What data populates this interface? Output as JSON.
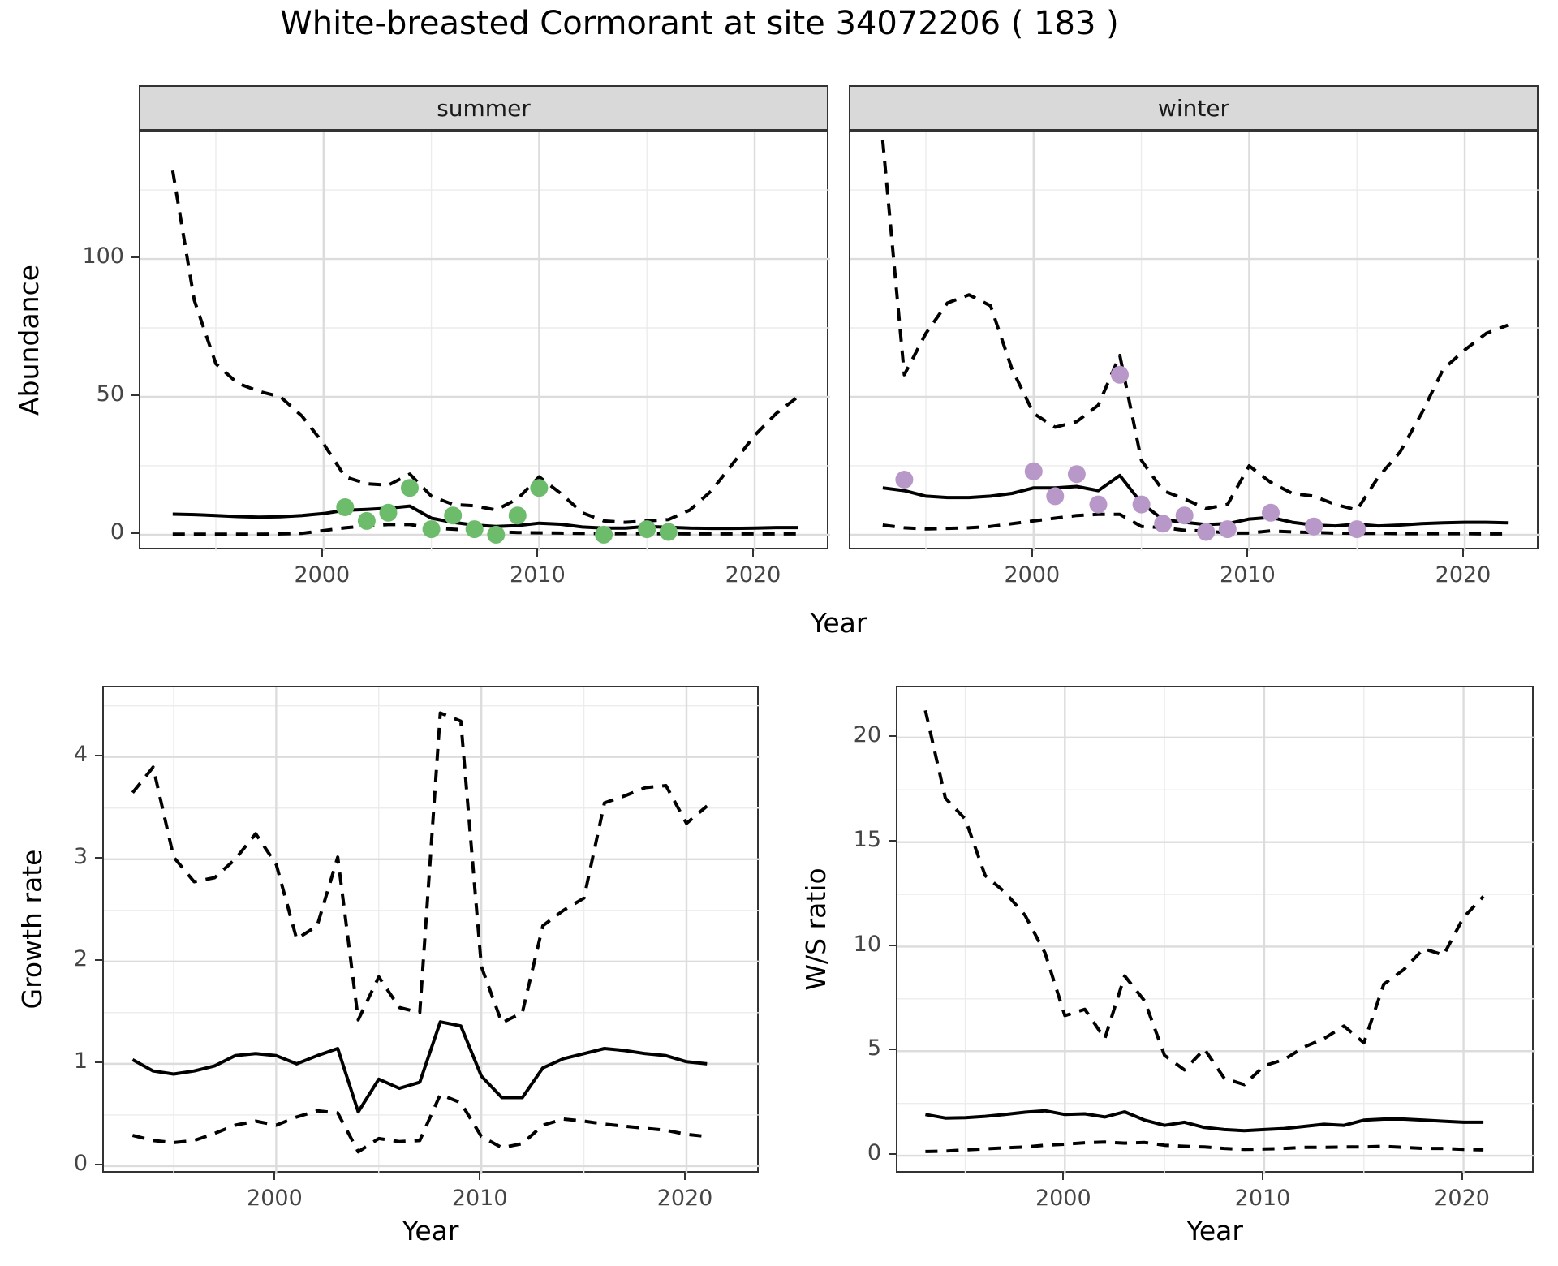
{
  "title": "White-breasted Cormorant at site 34072206 ( 183 )",
  "top_axis": {
    "ylabel": "Abundance",
    "xlabel": "Year"
  },
  "colors": {
    "summer_point": "#6CBC6C",
    "winter_point": "#B898C8",
    "line": "#000000",
    "grid_major": "#DCDCDC",
    "grid_minor": "#ECECEC",
    "strip_bg": "#D9D9D9",
    "panel_border": "#333333",
    "tick_text": "#454545"
  },
  "chart_data": [
    {
      "id": "abundance_summer",
      "type": "line",
      "facet_label": "summer",
      "ylabel": "Abundance",
      "xlabel": "Year",
      "xlim": [
        1991.5,
        2023.5
      ],
      "ylim": [
        -5.9,
        145.9
      ],
      "x_major": [
        2000,
        2010,
        2020
      ],
      "x_minor": [
        1995,
        2005,
        2015
      ],
      "y_major": [
        0,
        50,
        100
      ],
      "y_minor": [
        25,
        75,
        125
      ],
      "x_tick_labels": [
        "2000",
        "2010",
        "2020"
      ],
      "y_tick_labels": [
        "0",
        "50",
        "100"
      ],
      "grid": true,
      "legend": "none",
      "x": [
        1993,
        1994,
        1995,
        1996,
        1997,
        1998,
        1999,
        2000,
        2001,
        2002,
        2003,
        2004,
        2005,
        2006,
        2007,
        2008,
        2009,
        2010,
        2011,
        2012,
        2013,
        2014,
        2015,
        2016,
        2017,
        2018,
        2019,
        2020,
        2021,
        2022
      ],
      "series": [
        {
          "name": "estimate",
          "style": "solid",
          "values": [
            7.5,
            7.3,
            7.0,
            6.6,
            6.4,
            6.5,
            7.0,
            7.7,
            8.9,
            9.2,
            9.6,
            10.4,
            6.0,
            4.5,
            3.5,
            3.0,
            3.3,
            4.2,
            3.8,
            2.8,
            2.4,
            2.4,
            3.0,
            2.7,
            2.4,
            2.3,
            2.3,
            2.4,
            2.6,
            2.6
          ]
        },
        {
          "name": "ci_upper",
          "style": "dashed",
          "values": [
            132,
            85,
            62,
            55,
            52,
            50,
            43,
            33,
            21,
            18.5,
            18,
            22,
            14,
            11,
            10.5,
            9,
            13,
            21,
            15,
            8,
            5,
            4.5,
            5,
            5.5,
            9,
            16,
            26,
            36,
            44,
            50
          ]
        },
        {
          "name": "ci_lower",
          "style": "dashed",
          "values": [
            0.2,
            0.2,
            0.2,
            0.2,
            0.2,
            0.3,
            0.5,
            1.5,
            2.5,
            3.2,
            3.7,
            3.7,
            2.5,
            2.0,
            1.5,
            1.0,
            0.8,
            0.7,
            0.6,
            0.5,
            0.4,
            0.4,
            0.4,
            0.4,
            0.3,
            0.3,
            0.3,
            0.3,
            0.3,
            0.3
          ]
        }
      ],
      "points": {
        "name": "observed_counts",
        "color": "#6CBC6C",
        "x": [
          2001,
          2002,
          2003,
          2004,
          2005,
          2006,
          2007,
          2008,
          2009,
          2010,
          2013,
          2015,
          2016
        ],
        "y": [
          10,
          5,
          8,
          17,
          2,
          7,
          2,
          0,
          7,
          17,
          0,
          2,
          1
        ]
      }
    },
    {
      "id": "abundance_winter",
      "type": "line",
      "facet_label": "winter",
      "ylabel": "Abundance",
      "xlabel": "Year",
      "xlim": [
        1991.5,
        2023.5
      ],
      "ylim": [
        -5.9,
        145.9
      ],
      "x_major": [
        2000,
        2010,
        2020
      ],
      "x_minor": [
        1995,
        2005,
        2015
      ],
      "y_major": [
        0,
        50,
        100
      ],
      "y_minor": [
        25,
        75,
        125
      ],
      "x_tick_labels": [
        "2000",
        "2010",
        "2020"
      ],
      "y_tick_labels": [],
      "grid": true,
      "legend": "none",
      "x": [
        1993,
        1994,
        1995,
        1996,
        1997,
        1998,
        1999,
        2000,
        2001,
        2002,
        2003,
        2004,
        2005,
        2006,
        2007,
        2008,
        2009,
        2010,
        2011,
        2012,
        2013,
        2014,
        2015,
        2016,
        2017,
        2018,
        2019,
        2020,
        2021,
        2022
      ],
      "series": [
        {
          "name": "estimate",
          "style": "solid",
          "values": [
            17,
            16,
            14,
            13.5,
            13.5,
            14,
            15,
            17,
            17,
            17.5,
            16,
            21.5,
            11.5,
            5.5,
            4.5,
            3.7,
            4.0,
            5.7,
            6.3,
            4.5,
            3.5,
            3.2,
            3.8,
            3.2,
            3.5,
            4.0,
            4.3,
            4.5,
            4.5,
            4.3
          ]
        },
        {
          "name": "ci_upper",
          "style": "dashed",
          "values": [
            143,
            58,
            73,
            84,
            87,
            83,
            60,
            44,
            39,
            41,
            47,
            65,
            27,
            16,
            13,
            9.5,
            11,
            25,
            19,
            15,
            14,
            11,
            9,
            21,
            30,
            44,
            60,
            67,
            73,
            76
          ]
        },
        {
          "name": "ci_lower",
          "style": "dashed",
          "values": [
            3.5,
            2.5,
            2.1,
            2.3,
            2.5,
            3.0,
            4.0,
            5.0,
            6.0,
            7.0,
            7.4,
            7.4,
            3.0,
            2.6,
            1.6,
            1.4,
            0.6,
            0.6,
            1.4,
            1.0,
            0.8,
            0.6,
            0.5,
            0.5,
            0.4,
            0.4,
            0.4,
            0.4,
            0.3,
            0.3
          ]
        }
      ],
      "points": {
        "name": "observed_counts",
        "color": "#B898C8",
        "x": [
          1994,
          2000,
          2001,
          2002,
          2003,
          2004,
          2005,
          2006,
          2007,
          2008,
          2009,
          2011,
          2013,
          2015
        ],
        "y": [
          20,
          23,
          14,
          22,
          11,
          58,
          11,
          4,
          7,
          1,
          2,
          8,
          3,
          2
        ]
      }
    },
    {
      "id": "growth_rate",
      "type": "line",
      "facet_label": "",
      "ylabel": "Growth rate",
      "xlabel": "Year",
      "xlim": [
        1991.6,
        2023.6
      ],
      "ylim": [
        -0.08,
        4.68
      ],
      "x_major": [
        2000,
        2010,
        2020
      ],
      "x_minor": [
        1995,
        2005,
        2015
      ],
      "y_major": [
        0,
        1,
        2,
        3,
        4
      ],
      "y_minor": [
        0.5,
        1.5,
        2.5,
        3.5,
        4.5
      ],
      "x_tick_labels": [
        "2000",
        "2010",
        "2020"
      ],
      "y_tick_labels": [
        "0",
        "1",
        "2",
        "3",
        "4"
      ],
      "grid": true,
      "legend": "none",
      "x": [
        1993,
        1994,
        1995,
        1996,
        1997,
        1998,
        1999,
        2000,
        2001,
        2002,
        2003,
        2004,
        2005,
        2006,
        2007,
        2008,
        2009,
        2010,
        2011,
        2012,
        2013,
        2014,
        2015,
        2016,
        2017,
        2018,
        2019,
        2020,
        2021
      ],
      "series": [
        {
          "name": "estimate",
          "style": "solid",
          "values": [
            1.04,
            0.93,
            0.9,
            0.93,
            0.98,
            1.08,
            1.1,
            1.08,
            1.0,
            1.08,
            1.15,
            0.53,
            0.85,
            0.76,
            0.82,
            1.41,
            1.37,
            0.88,
            0.67,
            0.67,
            0.96,
            1.05,
            1.1,
            1.15,
            1.13,
            1.1,
            1.08,
            1.02,
            1.0
          ]
        },
        {
          "name": "ci_upper",
          "style": "dashed",
          "values": [
            3.65,
            3.9,
            3.02,
            2.78,
            2.82,
            3.0,
            3.25,
            2.95,
            2.22,
            2.35,
            3.02,
            1.43,
            1.85,
            1.55,
            1.5,
            4.43,
            4.35,
            1.95,
            1.4,
            1.5,
            2.35,
            2.5,
            2.62,
            3.55,
            3.62,
            3.7,
            3.72,
            3.35,
            3.52
          ]
        },
        {
          "name": "ci_lower",
          "style": "dashed",
          "values": [
            0.3,
            0.25,
            0.23,
            0.25,
            0.32,
            0.4,
            0.44,
            0.4,
            0.48,
            0.54,
            0.52,
            0.14,
            0.27,
            0.24,
            0.25,
            0.7,
            0.62,
            0.29,
            0.18,
            0.22,
            0.4,
            0.46,
            0.44,
            0.41,
            0.39,
            0.37,
            0.35,
            0.31,
            0.29
          ]
        }
      ],
      "points": null
    },
    {
      "id": "ws_ratio",
      "type": "line",
      "facet_label": "",
      "ylabel": "W/S ratio",
      "xlabel": "Year",
      "xlim": [
        1991.6,
        2023.6
      ],
      "ylim": [
        -0.89,
        22.4
      ],
      "x_major": [
        2000,
        2010,
        2020
      ],
      "x_minor": [
        1995,
        2005,
        2015
      ],
      "y_major": [
        0,
        5,
        10,
        15,
        20
      ],
      "y_minor": [
        2.5,
        7.5,
        12.5,
        17.5
      ],
      "x_tick_labels": [
        "2000",
        "2010",
        "2020"
      ],
      "y_tick_labels": [
        "0",
        "5",
        "10",
        "15",
        "20"
      ],
      "grid": true,
      "legend": "none",
      "x": [
        1993,
        1994,
        1995,
        1996,
        1997,
        1998,
        1999,
        2000,
        2001,
        2002,
        2003,
        2004,
        2005,
        2006,
        2007,
        2008,
        2009,
        2010,
        2011,
        2012,
        2013,
        2014,
        2015,
        2016,
        2017,
        2018,
        2019,
        2020,
        2021
      ],
      "series": [
        {
          "name": "estimate",
          "style": "solid",
          "values": [
            1.97,
            1.8,
            1.82,
            1.88,
            1.97,
            2.08,
            2.15,
            1.97,
            2.0,
            1.85,
            2.1,
            1.7,
            1.45,
            1.6,
            1.35,
            1.25,
            1.2,
            1.25,
            1.3,
            1.4,
            1.5,
            1.45,
            1.7,
            1.75,
            1.75,
            1.7,
            1.65,
            1.6,
            1.6
          ]
        },
        {
          "name": "ci_upper",
          "style": "dashed",
          "values": [
            21.3,
            17.1,
            16.1,
            13.4,
            12.6,
            11.5,
            9.7,
            6.7,
            7.0,
            5.6,
            8.6,
            7.4,
            4.8,
            4.1,
            5.1,
            3.7,
            3.4,
            4.3,
            4.6,
            5.2,
            5.6,
            6.2,
            5.4,
            8.2,
            8.9,
            9.9,
            9.6,
            11.4,
            12.4
          ]
        },
        {
          "name": "ci_lower",
          "style": "dashed",
          "values": [
            0.2,
            0.22,
            0.28,
            0.33,
            0.38,
            0.42,
            0.5,
            0.55,
            0.62,
            0.65,
            0.6,
            0.63,
            0.5,
            0.45,
            0.42,
            0.35,
            0.3,
            0.32,
            0.35,
            0.4,
            0.4,
            0.42,
            0.42,
            0.45,
            0.4,
            0.35,
            0.35,
            0.3,
            0.28
          ]
        }
      ],
      "points": null
    }
  ]
}
